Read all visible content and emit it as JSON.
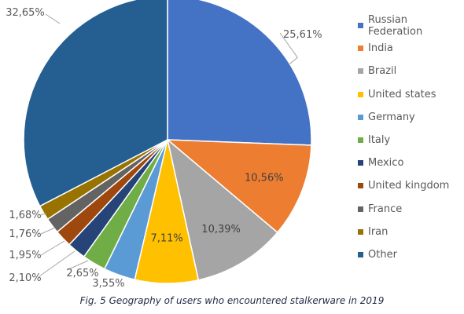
{
  "chart_data": {
    "type": "pie",
    "caption": "Fig. 5 Geography of users who encountered stalkerware in 2019",
    "legend_position": "right",
    "slices": [
      {
        "name": "Russian Federation",
        "value": 25.61,
        "label": "25,61%",
        "color": "#4472C4"
      },
      {
        "name": "India",
        "value": 10.56,
        "label": "10,56%",
        "color": "#ED7D31"
      },
      {
        "name": "Brazil",
        "value": 10.39,
        "label": "10,39%",
        "color": "#A5A5A5"
      },
      {
        "name": "United states",
        "value": 7.11,
        "label": "7,11%",
        "color": "#FFC000"
      },
      {
        "name": "Germany",
        "value": 3.55,
        "label": "3,55%",
        "color": "#5B9BD5"
      },
      {
        "name": "Italy",
        "value": 2.65,
        "label": "2,65%",
        "color": "#70AD47"
      },
      {
        "name": "Mexico",
        "value": 2.1,
        "label": "2,10%",
        "color": "#264478"
      },
      {
        "name": "United kingdom",
        "value": 1.95,
        "label": "1,95%",
        "color": "#9E480E"
      },
      {
        "name": "France",
        "value": 1.76,
        "label": "1,76%",
        "color": "#636363"
      },
      {
        "name": "Iran",
        "value": 1.68,
        "label": "1,68%",
        "color": "#997300"
      },
      {
        "name": "Other",
        "value": 32.65,
        "label": "32,65%",
        "color": "#255E91"
      }
    ]
  }
}
